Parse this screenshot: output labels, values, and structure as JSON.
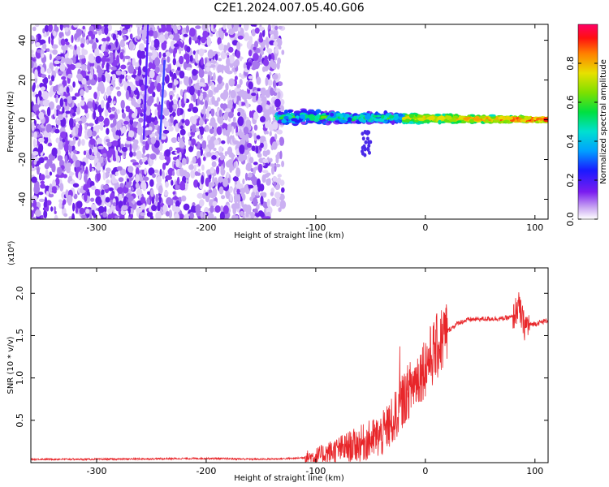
{
  "title": "C2E1.2024.007.05.40.G06",
  "colors": {
    "snr_line": "#e8262a",
    "spectro_scatter": "#6a1fe8"
  },
  "chart_data": [
    {
      "type": "heatmap",
      "xlabel": "Height of straight line (km)",
      "ylabel": "Frequency (Hz)",
      "xlim": [
        -360,
        112
      ],
      "ylim": [
        -50,
        48
      ],
      "x_ticks": [
        -300,
        -200,
        -100,
        0,
        100
      ],
      "y_ticks": [
        -40,
        -20,
        0,
        20,
        40
      ],
      "grid": false,
      "colorbar": {
        "label": "Normalized spectral amplitude",
        "range": [
          0,
          1
        ],
        "ticks": [
          "0.0",
          "0.2",
          "0.4",
          "0.6",
          "0.8"
        ],
        "colormap": "rainbow"
      },
      "regions": {
        "noise_scatter_x": [
          -360,
          -130
        ],
        "noise_scatter_y": [
          -50,
          48
        ],
        "signal_band_x": [
          -135,
          112
        ],
        "signal_band_center_y": 1.5,
        "signal_band_width_y": 8,
        "strong_signal_x": [
          -20,
          112
        ]
      }
    },
    {
      "type": "line",
      "xlabel": "Height of straight line (km)",
      "ylabel": "SNR (10 * v/v)",
      "scale_label": "(x10⁴)",
      "xlim": [
        -360,
        112
      ],
      "ylim": [
        0,
        2.3
      ],
      "x_ticks": [
        -300,
        -200,
        -100,
        0,
        100
      ],
      "y_ticks": [
        0.5,
        1.0,
        1.5,
        2.0
      ],
      "y_tick_labels": [
        "0.5",
        "1.0",
        "1.5",
        "2.0"
      ],
      "grid": false,
      "series": [
        {
          "x": [
            -360,
            -300,
            -200,
            -150,
            -120,
            -100,
            -80,
            -60,
            -40,
            -30,
            -20,
            -10,
            0,
            10,
            20,
            30,
            40,
            60,
            70,
            80,
            85,
            90,
            100,
            112
          ],
          "y": [
            0.04,
            0.04,
            0.05,
            0.04,
            0.05,
            0.07,
            0.15,
            0.22,
            0.32,
            0.48,
            0.75,
            0.95,
            1.15,
            1.35,
            1.55,
            1.65,
            1.69,
            1.7,
            1.7,
            1.72,
            1.85,
            1.62,
            1.64,
            1.68
          ]
        }
      ]
    }
  ]
}
